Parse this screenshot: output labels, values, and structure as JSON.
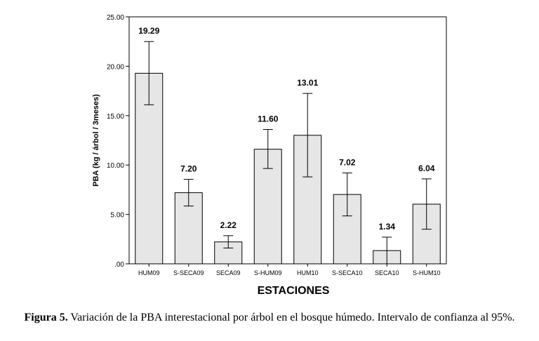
{
  "chart_data": {
    "type": "bar",
    "categories": [
      "HUM09",
      "S-SECA09",
      "SECA09",
      "S-HUM09",
      "HUM10",
      "S-SECA10",
      "SECA10",
      "S-HUM10"
    ],
    "values": [
      19.29,
      7.2,
      2.22,
      11.6,
      13.01,
      7.02,
      1.34,
      6.04
    ],
    "value_labels": [
      "19.29",
      "7.20",
      "2.22",
      "11.60",
      "13.01",
      "7.02",
      "1.34",
      "6.04"
    ],
    "error_low": [
      16.1,
      5.85,
      1.6,
      9.65,
      8.8,
      4.85,
      0.0,
      3.5
    ],
    "error_high": [
      22.5,
      8.55,
      2.85,
      13.6,
      17.25,
      9.2,
      2.7,
      8.6
    ],
    "ylim": [
      0,
      25
    ],
    "yticks": [
      0,
      5,
      10,
      15,
      20,
      25
    ],
    "ytick_labels": [
      ".00",
      "5.00",
      "10.00",
      "15.00",
      "20.00",
      "25.00"
    ],
    "xlabel": "ESTACIONES",
    "ylabel": "PBA (kg / árbol / 3meses)",
    "bar_color": "#e6e6e6",
    "grid": false
  },
  "caption": {
    "label": "Figura 5.",
    "text": " Variación de la PBA interestacional por árbol en el bosque húmedo. Intervalo de confianza al 95%."
  }
}
